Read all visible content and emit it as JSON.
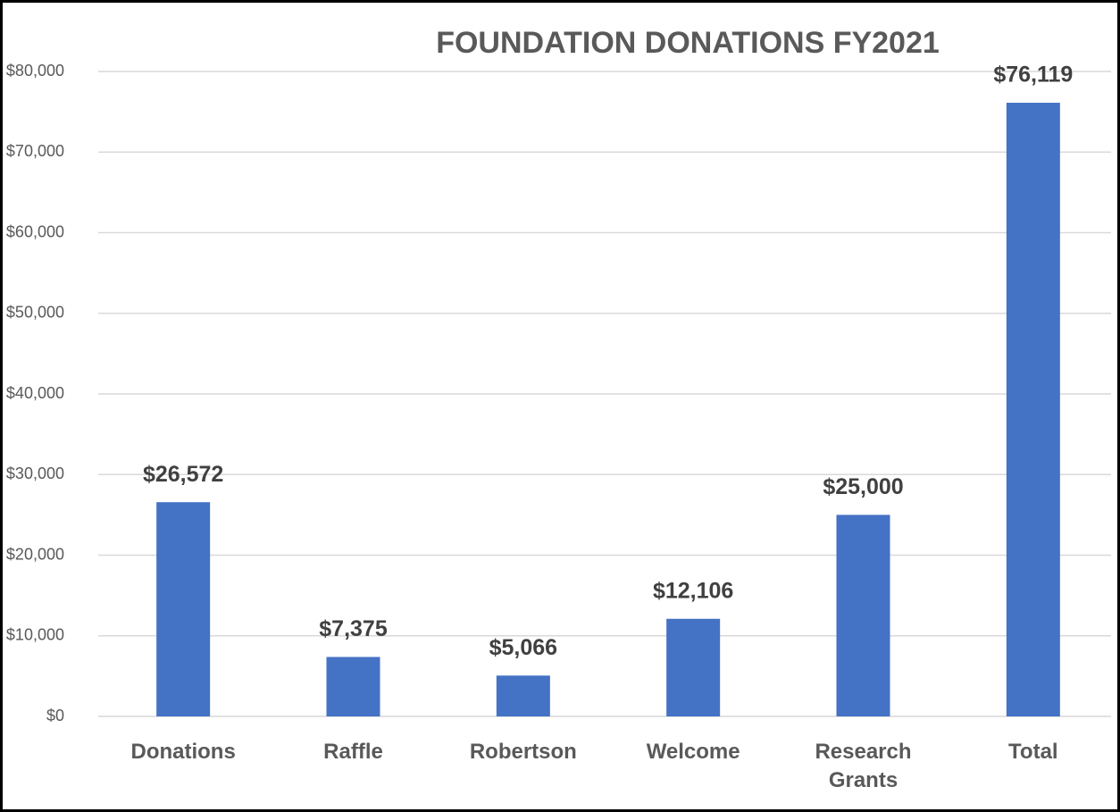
{
  "chart_data": {
    "type": "bar",
    "title": "FOUNDATION DONATIONS FY2021",
    "categories": [
      "Donations",
      "Raffle",
      "Robertson",
      "Welcome",
      "Research Grants",
      "Total"
    ],
    "values": [
      26572,
      7375,
      5066,
      12106,
      25000,
      76119
    ],
    "value_labels": [
      "$26,572",
      "$7,375",
      "$5,066",
      "$12,106",
      "$25,000",
      "$76,119"
    ],
    "color": "#4472c4",
    "ylim": [
      0,
      80000
    ],
    "yticks": [
      {
        "value": 0,
        "label": "$0"
      },
      {
        "value": 10000,
        "label": "$10,000"
      },
      {
        "value": 20000,
        "label": "$20,000"
      },
      {
        "value": 30000,
        "label": "$30,000"
      },
      {
        "value": 40000,
        "label": "$40,000"
      },
      {
        "value": 50000,
        "label": "$50,000"
      },
      {
        "value": 60000,
        "label": "$60,000"
      },
      {
        "value": 70000,
        "label": "$70,000"
      },
      {
        "value": 80000,
        "label": "$80,000"
      }
    ],
    "grid": true
  }
}
